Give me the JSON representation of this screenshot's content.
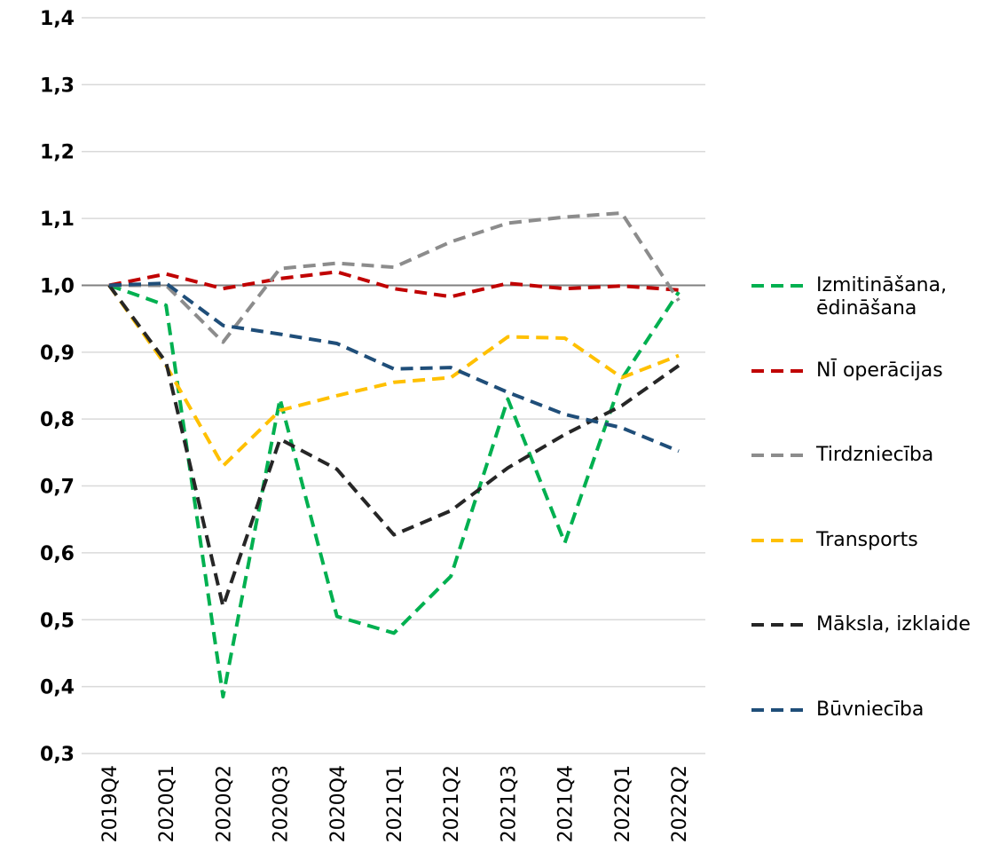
{
  "chart_data": {
    "type": "line",
    "categories": [
      "2019Q4",
      "2020Q1",
      "2020Q2",
      "2020Q3",
      "2020Q4",
      "2021Q1",
      "2021Q2",
      "2021Q3",
      "2021Q4",
      "2022Q1",
      "2022Q2"
    ],
    "series": [
      {
        "name": "Izmitināšana, ēdināšana",
        "color": "#00b050",
        "values": [
          1.0,
          0.97,
          0.385,
          0.83,
          0.505,
          0.48,
          0.565,
          0.83,
          0.615,
          0.86,
          0.99
        ]
      },
      {
        "name": "NĪ operācijas",
        "color": "#c00000",
        "values": [
          1.0,
          1.017,
          0.995,
          1.01,
          1.02,
          0.995,
          0.983,
          1.003,
          0.995,
          0.999,
          0.993
        ]
      },
      {
        "name": "Tirdzniecība",
        "color": "#8c8c8c",
        "values": [
          1.0,
          1.0,
          0.915,
          1.025,
          1.033,
          1.027,
          1.065,
          1.093,
          1.102,
          1.108,
          0.977
        ]
      },
      {
        "name": "Transports",
        "color": "#ffc000",
        "values": [
          1.0,
          0.88,
          0.73,
          0.813,
          0.835,
          0.855,
          0.862,
          0.923,
          0.921,
          0.862,
          0.895
        ]
      },
      {
        "name": "Māksla, izklaide",
        "color": "#262626",
        "values": [
          1.0,
          0.885,
          0.52,
          0.77,
          0.725,
          0.627,
          0.663,
          0.727,
          0.777,
          0.82,
          0.88
        ]
      },
      {
        "name": "Būvniecība",
        "color": "#1f4e79",
        "values": [
          1.0,
          1.003,
          0.94,
          0.927,
          0.913,
          0.875,
          0.877,
          0.84,
          0.807,
          0.787,
          0.752
        ]
      }
    ],
    "ylim": [
      0.3,
      1.4
    ],
    "yticks": [
      {
        "value": 0.3,
        "label": "0,3"
      },
      {
        "value": 0.4,
        "label": "0,4"
      },
      {
        "value": 0.5,
        "label": "0,5"
      },
      {
        "value": 0.6,
        "label": "0,6"
      },
      {
        "value": 0.7,
        "label": "0,7"
      },
      {
        "value": 0.8,
        "label": "0,8"
      },
      {
        "value": 0.9,
        "label": "0,9"
      },
      {
        "value": 1.0,
        "label": "1,0"
      },
      {
        "value": 1.1,
        "label": "1,1"
      },
      {
        "value": 1.2,
        "label": "1,2"
      },
      {
        "value": 1.3,
        "label": "1,3"
      },
      {
        "value": 1.4,
        "label": "1,4"
      }
    ],
    "reference_line": 1.0,
    "grid": true,
    "legend": "right",
    "line_style": "dashed"
  }
}
